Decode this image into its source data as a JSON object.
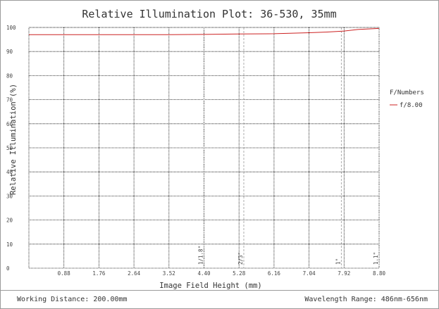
{
  "chart_data": {
    "type": "line",
    "title": "Relative Illumination Plot: 36-530, 35mm",
    "xlabel": "Image Field Height (mm)",
    "ylabel": "Relative Illumination (%)",
    "xlim": [
      0,
      8.8
    ],
    "ylim": [
      0,
      100
    ],
    "x_ticks": [
      "0.88",
      "1.76",
      "2.64",
      "3.52",
      "4.40",
      "5.28",
      "6.16",
      "7.04",
      "7.92",
      "8.80"
    ],
    "y_ticks": [
      "0",
      "10",
      "20",
      "30",
      "40",
      "50",
      "60",
      "70",
      "80",
      "90",
      "100"
    ],
    "grid": true,
    "legend": {
      "title": "F/Numbers",
      "position": "right"
    },
    "series": [
      {
        "name": "f/8.00",
        "color": "#cc2222",
        "x": [
          0,
          0.88,
          1.76,
          2.64,
          3.52,
          4.4,
          5.28,
          6.16,
          7.04,
          7.5,
          7.92,
          8.3,
          8.8
        ],
        "y": [
          97.0,
          97.0,
          97.0,
          97.0,
          97.0,
          97.1,
          97.3,
          97.4,
          97.8,
          98.1,
          98.5,
          99.2,
          99.6
        ]
      }
    ],
    "sensor_markers": [
      {
        "label": "1/1.8\"",
        "x": 4.4
      },
      {
        "label": "2/3\"",
        "x": 5.4
      },
      {
        "label": "1\"",
        "x": 7.85
      },
      {
        "label": "1.1\"",
        "x": 8.8
      }
    ]
  },
  "footer": {
    "working_distance": "Working Distance: 200.00mm",
    "wavelength_range": "Wavelength Range: 486nm-656nm"
  },
  "colors": {
    "grid": "#000000",
    "marker": "#999999",
    "frame": "#9a9a9a"
  }
}
